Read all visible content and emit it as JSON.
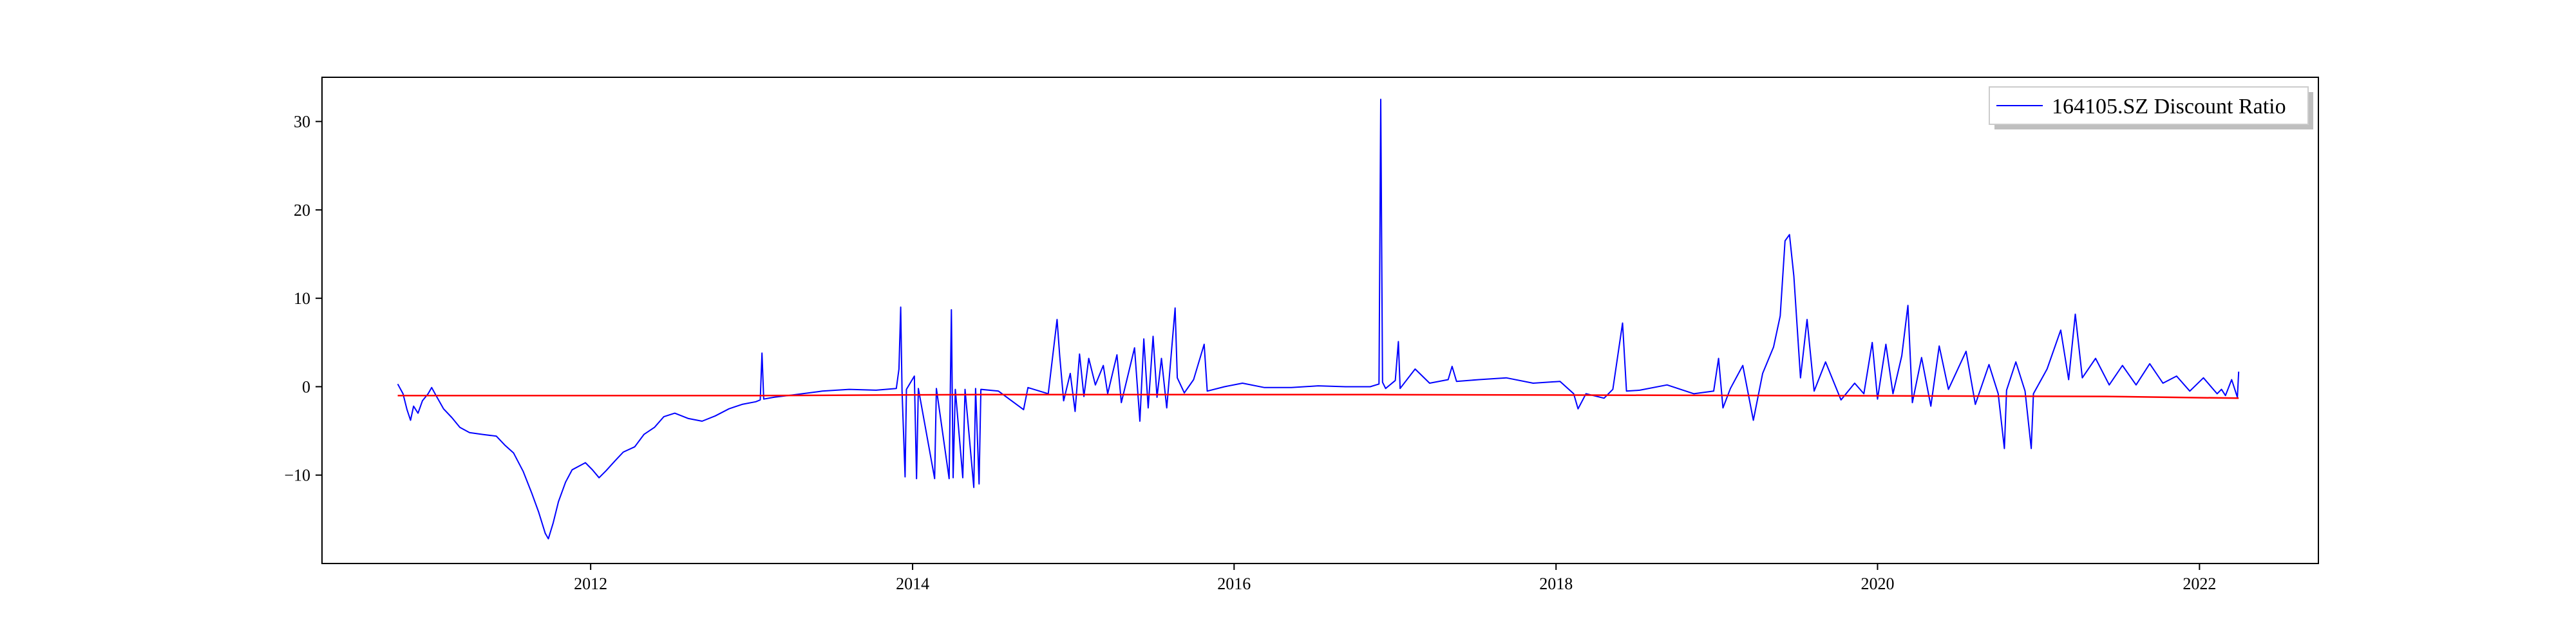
{
  "chart_data": {
    "type": "line",
    "title": "",
    "xlabel": "",
    "ylabel": "",
    "xlim": [
      "2010-05-01",
      "2022-09-28"
    ],
    "ylim": [
      -20,
      35
    ],
    "x_ticks": [
      "2012",
      "2014",
      "2016",
      "2018",
      "2020",
      "2022"
    ],
    "y_ticks": [
      -10,
      0,
      10,
      20,
      30
    ],
    "grid": false,
    "legend": {
      "position": "top-right"
    },
    "series": [
      {
        "name": "164105.SZ Discount Ratio",
        "color": "#0000ff",
        "points": [
          [
            "2010-10-20",
            0.3
          ],
          [
            "2010-11-01",
            -0.8
          ],
          [
            "2010-11-10",
            -2.6
          ],
          [
            "2010-11-18",
            -3.8
          ],
          [
            "2010-11-25",
            -2.2
          ],
          [
            "2010-12-05",
            -3.0
          ],
          [
            "2010-12-15",
            -1.6
          ],
          [
            "2010-12-28",
            -0.8
          ],
          [
            "2011-01-05",
            -0.1
          ],
          [
            "2011-01-15",
            -1.0
          ],
          [
            "2011-02-01",
            -2.5
          ],
          [
            "2011-02-20",
            -3.5
          ],
          [
            "2011-03-10",
            -4.6
          ],
          [
            "2011-04-01",
            -5.2
          ],
          [
            "2011-05-01",
            -5.4
          ],
          [
            "2011-06-01",
            -5.6
          ],
          [
            "2011-06-20",
            -6.6
          ],
          [
            "2011-07-10",
            -7.5
          ],
          [
            "2011-08-01",
            -9.6
          ],
          [
            "2011-08-20",
            -12.0
          ],
          [
            "2011-09-05",
            -14.2
          ],
          [
            "2011-09-20",
            -16.6
          ],
          [
            "2011-09-27",
            -17.2
          ],
          [
            "2011-10-08",
            -15.4
          ],
          [
            "2011-10-20",
            -13.0
          ],
          [
            "2011-11-05",
            -10.8
          ],
          [
            "2011-11-20",
            -9.4
          ],
          [
            "2011-12-05",
            -9.0
          ],
          [
            "2011-12-20",
            -8.6
          ],
          [
            "2012-01-05",
            -9.4
          ],
          [
            "2012-01-20",
            -10.3
          ],
          [
            "2012-02-05",
            -9.5
          ],
          [
            "2012-02-25",
            -8.4
          ],
          [
            "2012-03-15",
            -7.4
          ],
          [
            "2012-04-10",
            -6.8
          ],
          [
            "2012-05-01",
            -5.4
          ],
          [
            "2012-05-25",
            -4.6
          ],
          [
            "2012-06-15",
            -3.4
          ],
          [
            "2012-07-10",
            -3.0
          ],
          [
            "2012-08-10",
            -3.6
          ],
          [
            "2012-09-10",
            -3.9
          ],
          [
            "2012-10-10",
            -3.3
          ],
          [
            "2012-11-10",
            -2.5
          ],
          [
            "2012-12-10",
            -2.0
          ],
          [
            "2013-01-10",
            -1.7
          ],
          [
            "2013-01-20",
            -1.5
          ],
          [
            "2013-01-24",
            3.8
          ],
          [
            "2013-01-28",
            -1.4
          ],
          [
            "2013-02-20",
            -1.2
          ],
          [
            "2013-04-10",
            -0.9
          ],
          [
            "2013-06-10",
            -0.5
          ],
          [
            "2013-08-10",
            -0.3
          ],
          [
            "2013-10-10",
            -0.4
          ],
          [
            "2013-11-25",
            -0.2
          ],
          [
            "2013-12-01",
            2.0
          ],
          [
            "2013-12-05",
            9.0
          ],
          [
            "2013-12-08",
            -0.5
          ],
          [
            "2013-12-15",
            -10.2
          ],
          [
            "2013-12-18",
            -0.3
          ],
          [
            "2014-01-05",
            1.2
          ],
          [
            "2014-01-10",
            -10.4
          ],
          [
            "2014-01-14",
            -0.2
          ],
          [
            "2014-02-20",
            -10.4
          ],
          [
            "2014-02-24",
            -0.2
          ],
          [
            "2014-03-25",
            -10.4
          ],
          [
            "2014-03-30",
            8.7
          ],
          [
            "2014-04-03",
            -10.3
          ],
          [
            "2014-04-08",
            -0.3
          ],
          [
            "2014-04-25",
            -10.3
          ],
          [
            "2014-04-30",
            -0.3
          ],
          [
            "2014-05-20",
            -11.4
          ],
          [
            "2014-05-24",
            -0.2
          ],
          [
            "2014-06-01",
            -11.0
          ],
          [
            "2014-06-05",
            -0.3
          ],
          [
            "2014-07-15",
            -0.5
          ],
          [
            "2014-09-10",
            -2.6
          ],
          [
            "2014-09-20",
            -0.1
          ],
          [
            "2014-11-05",
            -0.8
          ],
          [
            "2014-11-25",
            7.6
          ],
          [
            "2014-12-01",
            3.5
          ],
          [
            "2014-12-10",
            -1.6
          ],
          [
            "2014-12-25",
            1.5
          ],
          [
            "2015-01-05",
            -2.8
          ],
          [
            "2015-01-15",
            3.7
          ],
          [
            "2015-01-25",
            -1.1
          ],
          [
            "2015-02-05",
            3.2
          ],
          [
            "2015-02-20",
            0.2
          ],
          [
            "2015-03-10",
            2.4
          ],
          [
            "2015-03-20",
            -0.8
          ],
          [
            "2015-04-10",
            3.6
          ],
          [
            "2015-04-20",
            -1.8
          ],
          [
            "2015-05-05",
            1.3
          ],
          [
            "2015-05-20",
            4.4
          ],
          [
            "2015-06-01",
            -3.9
          ],
          [
            "2015-06-10",
            5.4
          ],
          [
            "2015-06-20",
            -2.4
          ],
          [
            "2015-07-01",
            5.7
          ],
          [
            "2015-07-10",
            -1.2
          ],
          [
            "2015-07-20",
            3.2
          ],
          [
            "2015-08-01",
            -2.4
          ],
          [
            "2015-08-20",
            8.9
          ],
          [
            "2015-08-25",
            1.0
          ],
          [
            "2015-09-10",
            -0.7
          ],
          [
            "2015-10-01",
            0.8
          ],
          [
            "2015-10-25",
            4.8
          ],
          [
            "2015-11-01",
            -0.5
          ],
          [
            "2015-12-10",
            0.0
          ],
          [
            "2016-01-20",
            0.4
          ],
          [
            "2016-03-10",
            -0.1
          ],
          [
            "2016-05-10",
            -0.1
          ],
          [
            "2016-07-10",
            0.1
          ],
          [
            "2016-09-10",
            0.0
          ],
          [
            "2016-11-05",
            0.0
          ],
          [
            "2016-11-25",
            0.3
          ],
          [
            "2016-11-29",
            32.5
          ],
          [
            "2016-12-03",
            0.5
          ],
          [
            "2016-12-10",
            -0.2
          ],
          [
            "2017-01-01",
            0.7
          ],
          [
            "2017-01-08",
            5.1
          ],
          [
            "2017-01-12",
            -0.2
          ],
          [
            "2017-02-15",
            2.0
          ],
          [
            "2017-03-20",
            0.4
          ],
          [
            "2017-05-01",
            0.8
          ],
          [
            "2017-05-10",
            2.3
          ],
          [
            "2017-05-20",
            0.6
          ],
          [
            "2017-07-10",
            0.8
          ],
          [
            "2017-09-10",
            1.0
          ],
          [
            "2017-11-10",
            0.4
          ],
          [
            "2018-01-10",
            0.6
          ],
          [
            "2018-02-10",
            -0.8
          ],
          [
            "2018-02-20",
            -2.5
          ],
          [
            "2018-03-10",
            -0.8
          ],
          [
            "2018-04-20",
            -1.3
          ],
          [
            "2018-05-10",
            -0.3
          ],
          [
            "2018-06-01",
            7.2
          ],
          [
            "2018-06-10",
            -0.5
          ],
          [
            "2018-07-10",
            -0.4
          ],
          [
            "2018-09-10",
            0.2
          ],
          [
            "2018-11-10",
            -0.8
          ],
          [
            "2018-12-25",
            -0.5
          ],
          [
            "2019-01-05",
            3.2
          ],
          [
            "2019-01-15",
            -2.4
          ],
          [
            "2019-02-01",
            -0.2
          ],
          [
            "2019-03-01",
            2.4
          ],
          [
            "2019-03-25",
            -3.8
          ],
          [
            "2019-04-15",
            1.5
          ],
          [
            "2019-05-10",
            4.5
          ],
          [
            "2019-05-25",
            8.0
          ],
          [
            "2019-06-05",
            16.5
          ],
          [
            "2019-06-15",
            17.2
          ],
          [
            "2019-06-25",
            12.5
          ],
          [
            "2019-07-10",
            1.0
          ],
          [
            "2019-07-25",
            7.6
          ],
          [
            "2019-08-10",
            -0.5
          ],
          [
            "2019-09-05",
            2.8
          ],
          [
            "2019-10-10",
            -1.5
          ],
          [
            "2019-11-10",
            0.4
          ],
          [
            "2019-12-01",
            -0.8
          ],
          [
            "2019-12-20",
            5.0
          ],
          [
            "2020-01-01",
            -1.4
          ],
          [
            "2020-01-20",
            4.8
          ],
          [
            "2020-02-05",
            -0.8
          ],
          [
            "2020-02-25",
            3.5
          ],
          [
            "2020-03-10",
            9.2
          ],
          [
            "2020-03-20",
            -1.8
          ],
          [
            "2020-04-10",
            3.3
          ],
          [
            "2020-05-01",
            -2.2
          ],
          [
            "2020-05-20",
            4.6
          ],
          [
            "2020-06-10",
            -0.3
          ],
          [
            "2020-07-20",
            4.0
          ],
          [
            "2020-08-10",
            -2.0
          ],
          [
            "2020-09-10",
            2.5
          ],
          [
            "2020-10-01",
            -0.8
          ],
          [
            "2020-10-15",
            -7.0
          ],
          [
            "2020-10-20",
            -0.4
          ],
          [
            "2020-11-10",
            2.8
          ],
          [
            "2020-12-01",
            -0.5
          ],
          [
            "2020-12-15",
            -7.0
          ],
          [
            "2020-12-20",
            -0.8
          ],
          [
            "2021-01-20",
            2.0
          ],
          [
            "2021-02-20",
            6.4
          ],
          [
            "2021-03-10",
            0.8
          ],
          [
            "2021-03-25",
            8.2
          ],
          [
            "2021-04-10",
            1.0
          ],
          [
            "2021-05-10",
            3.2
          ],
          [
            "2021-06-10",
            0.2
          ],
          [
            "2021-07-10",
            2.4
          ],
          [
            "2021-08-10",
            0.2
          ],
          [
            "2021-09-10",
            2.6
          ],
          [
            "2021-10-10",
            0.4
          ],
          [
            "2021-11-10",
            1.2
          ],
          [
            "2021-12-10",
            -0.5
          ],
          [
            "2022-01-10",
            1.0
          ],
          [
            "2022-02-10",
            -0.8
          ],
          [
            "2022-02-20",
            -0.3
          ],
          [
            "2022-03-01",
            -1.0
          ],
          [
            "2022-03-15",
            0.8
          ],
          [
            "2022-03-28",
            -1.2
          ],
          [
            "2022-03-31",
            1.7
          ]
        ]
      },
      {
        "color": "#ff0000",
        "points": [
          [
            "2010-10-20",
            -1.0
          ],
          [
            "2013-01-20",
            -1.0
          ],
          [
            "2014-06-01",
            -0.9
          ],
          [
            "2016-12-01",
            -0.9
          ],
          [
            "2019-06-01",
            -1.0
          ],
          [
            "2021-06-01",
            -1.1
          ],
          [
            "2022-03-31",
            -1.3
          ]
        ]
      }
    ]
  }
}
